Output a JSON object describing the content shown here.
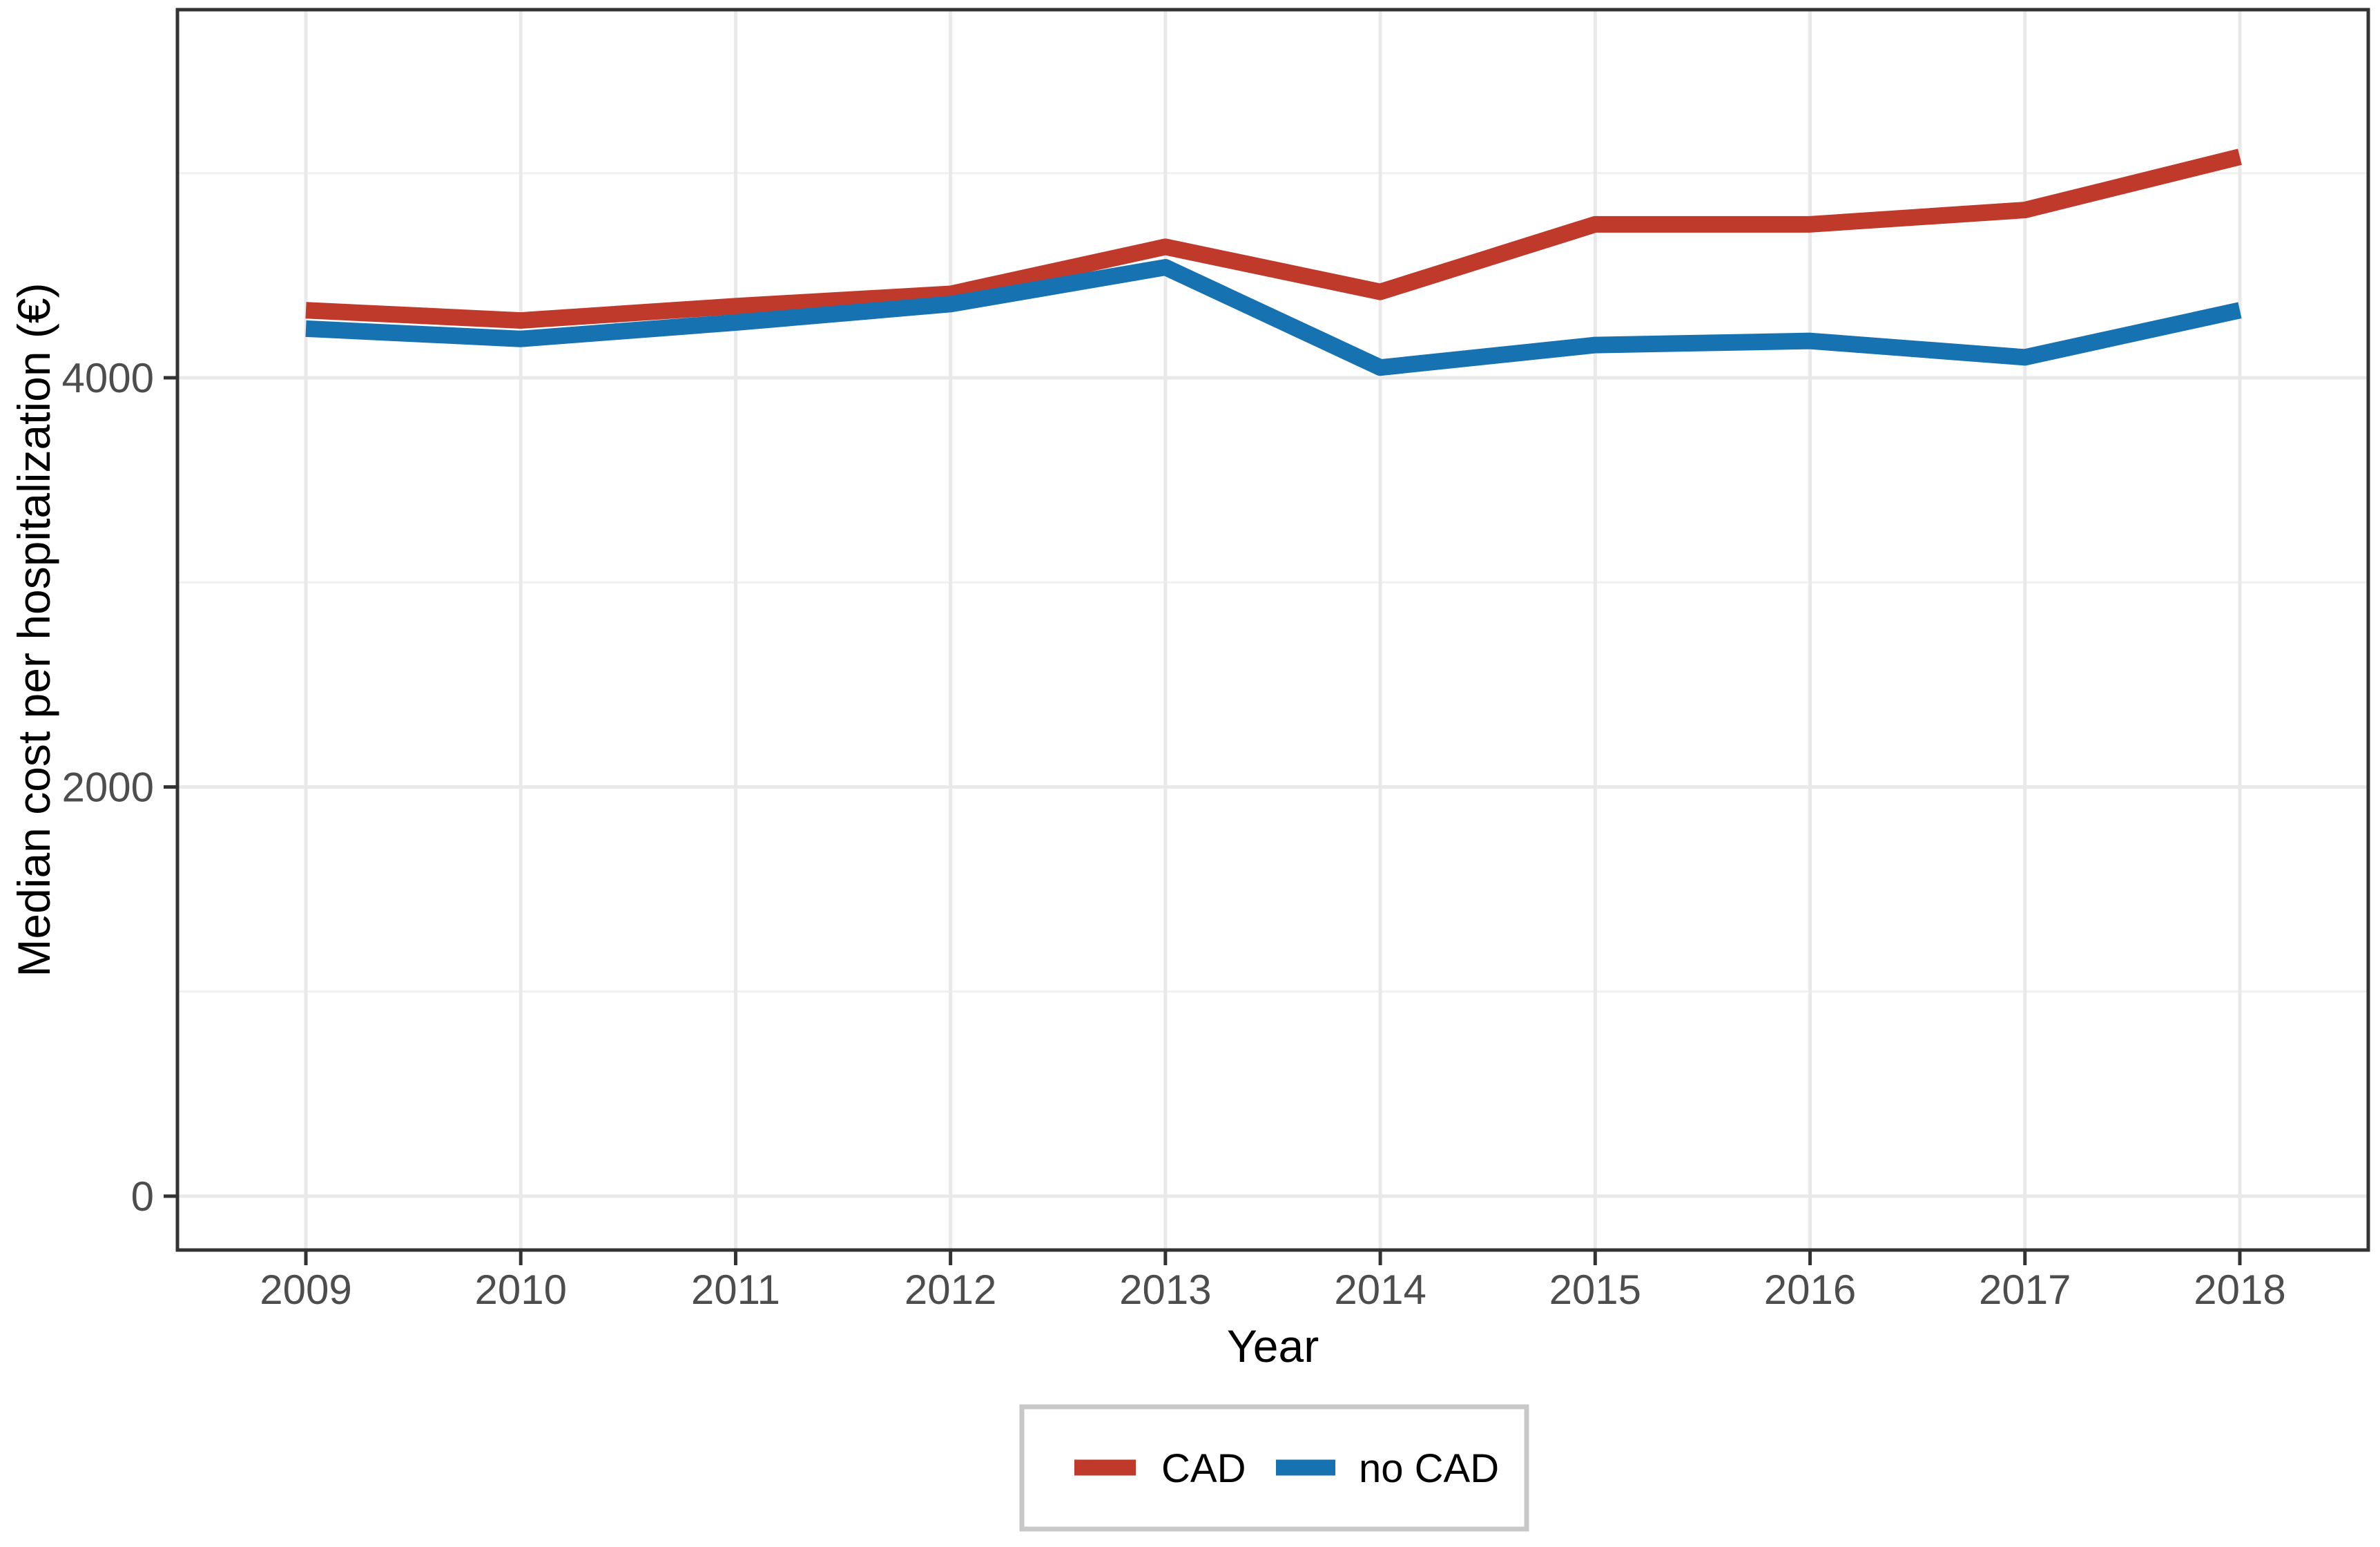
{
  "chart_data": {
    "type": "line",
    "xlabel": "Year",
    "ylabel": "Median cost per hospitalization (€)",
    "x": [
      2009,
      2010,
      2011,
      2012,
      2013,
      2014,
      2015,
      2016,
      2017,
      2018
    ],
    "series": [
      {
        "name": "CAD",
        "color": "#BF3A2B",
        "values": [
          4330,
          4280,
          4350,
          4410,
          4640,
          4420,
          4750,
          4750,
          4820,
          5080
        ]
      },
      {
        "name": "no CAD",
        "color": "#1772B1",
        "values": [
          4240,
          4190,
          4270,
          4360,
          4540,
          4050,
          4160,
          4180,
          4100,
          4330
        ]
      }
    ],
    "yaxis": {
      "ticks": [
        0,
        2000,
        4000
      ],
      "tick_labels": [
        "0",
        "2000",
        "4000"
      ],
      "minor_ticks": [
        1000,
        3000,
        5000
      ],
      "ylim": [
        -260,
        5800
      ]
    },
    "xaxis": {
      "ticks": [
        2009,
        2010,
        2011,
        2012,
        2013,
        2014,
        2015,
        2016,
        2017,
        2018
      ]
    },
    "grid": "on",
    "legend": {
      "position": "bottom",
      "entries": [
        "CAD",
        "no CAD"
      ]
    },
    "colors": {
      "panel_background": "#FFFFFF",
      "panel_border": "#333333",
      "grid_major": "#E9E9E9",
      "grid_minor": "#F1F1F1",
      "tick_mark": "#333333",
      "tick_text": "#4D4D4D",
      "legend_border": "#C8C8C8"
    }
  }
}
